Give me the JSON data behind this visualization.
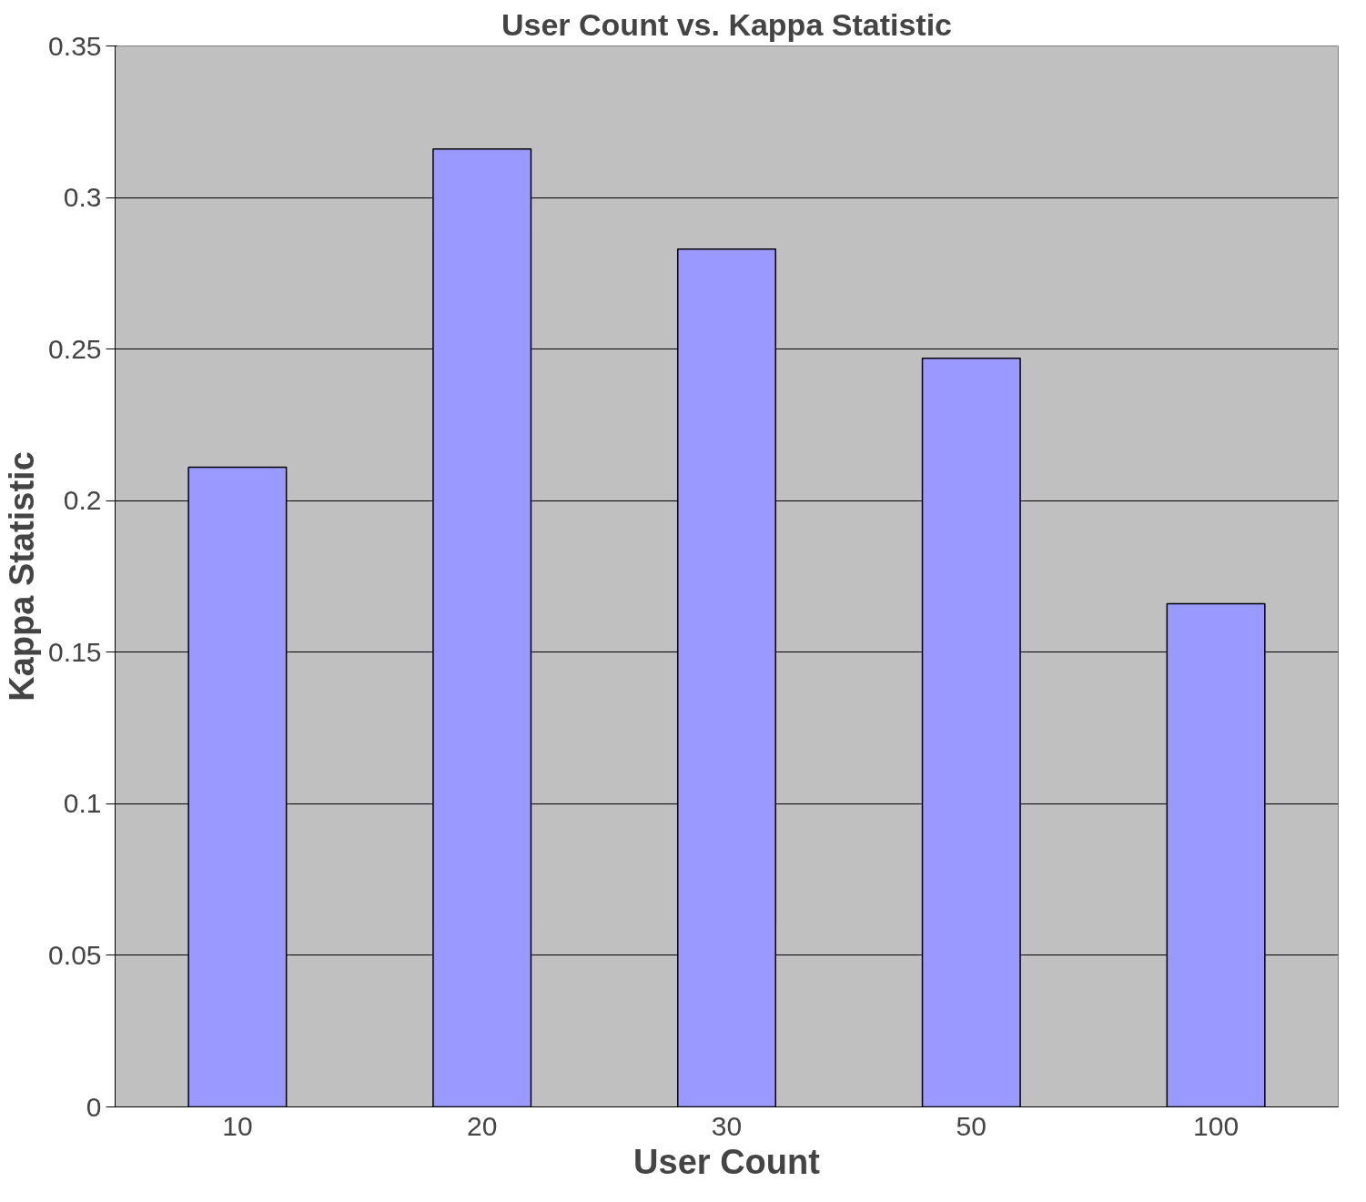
{
  "chart_data": {
    "type": "bar",
    "title": "User Count vs. Kappa Statistic",
    "xlabel": "User Count",
    "ylabel": "Kappa Statistic",
    "categories": [
      "10",
      "20",
      "30",
      "50",
      "100"
    ],
    "values": [
      0.211,
      0.316,
      0.283,
      0.247,
      0.166
    ],
    "color": "#9999ff",
    "ylim": [
      0,
      0.35
    ],
    "yticks": [
      0,
      0.05,
      0.1,
      0.15,
      0.2,
      0.25,
      0.3,
      0.35
    ],
    "grid": "y"
  }
}
